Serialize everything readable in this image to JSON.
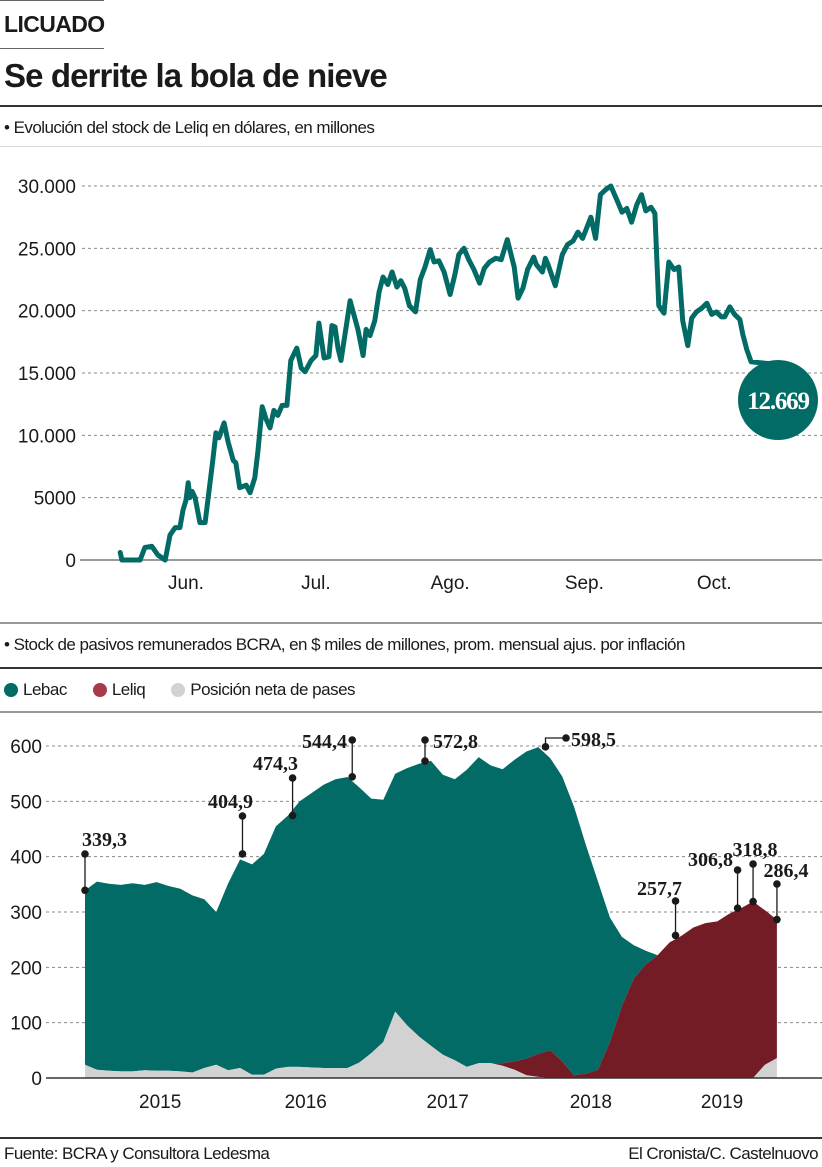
{
  "header": {
    "kicker": "LICUADO",
    "title": "Se derrite la bola de nieve"
  },
  "colors": {
    "teal": "#036b66",
    "maroon": "#731c26",
    "leliq_legend": "#a83a4a",
    "gray": "#d2d2d2",
    "grid": "#8a8a8a",
    "axis": "#9a9a9a",
    "annotation": "#1a1a1a"
  },
  "chart_data": [
    {
      "type": "line",
      "title": "• Evolución del stock de Leliq en dólares, en millones",
      "xlabel": "",
      "ylabel": "",
      "ylim": [
        0,
        30000
      ],
      "yticks": [
        0,
        5000,
        10000,
        15000,
        20000,
        25000,
        30000
      ],
      "ytick_labels": [
        "0",
        "5000",
        "10.000",
        "15.000",
        "20.000",
        "25.000",
        "30.000"
      ],
      "xticks": [
        0,
        30,
        61,
        92,
        122
      ],
      "xtick_labels": [
        "Jun.",
        "Jul.",
        "Ago.",
        "Sep.",
        "Oct."
      ],
      "x_unit": "days since 1 Jun",
      "grid": true,
      "series": [
        {
          "name": "Stock de Leliq (USD millones)",
          "x": [
            -15.2,
            -14.8,
            -10.6,
            -9.5,
            -7.9,
            -6.5,
            -4.8,
            -3.7,
            -2.5,
            -1.4,
            -0.7,
            0,
            0.5,
            0.9,
            1.4,
            2.1,
            3.2,
            4.4,
            6.2,
            6.9,
            7.6,
            8.8,
            9.7,
            10.9,
            11.5,
            12.4,
            13.9,
            14.8,
            15.9,
            16.6,
            17.6,
            18.5,
            19.4,
            20.3,
            21.2,
            22.2,
            23.3,
            24.2,
            25.6,
            26.6,
            27.5,
            28.9,
            30.0,
            30.7,
            31.9,
            33.0,
            33.7,
            34.4,
            35.1,
            35.8,
            37.2,
            37.9,
            38.6,
            39.7,
            40.9,
            41.6,
            42.5,
            43.6,
            44.6,
            45.5,
            46.6,
            47.6,
            48.7,
            49.6,
            50.5,
            51.6,
            53.0,
            54.1,
            55.2,
            56.4,
            57.3,
            58.4,
            59.6,
            61.0,
            62.1,
            63.0,
            64.2,
            65.3,
            66.5,
            67.8,
            68.9,
            70.1,
            71.5,
            72.8,
            74.2,
            75.8,
            76.7,
            77.8,
            78.9,
            80.3,
            80.9,
            82.3,
            83.0,
            83.6,
            85.3,
            86.9,
            88.1,
            89.4,
            90.5,
            91.6,
            93.5,
            94.6,
            95.7,
            96.9,
            98.1,
            99.5,
            100.7,
            101.8,
            102.9,
            104.1,
            105.2,
            106.2,
            107.4,
            108.3,
            109.2,
            110.4,
            111.5,
            112.7,
            113.8,
            114.7,
            115.9,
            116.8,
            117.9,
            119.1,
            120.3,
            121.4,
            122.5,
            123.7,
            124.4,
            125.6,
            126.7,
            127.9,
            128.6,
            129.5,
            130.5,
            135.2
          ],
          "values": [
            600,
            0,
            0,
            1000,
            1100,
            400,
            0,
            2000,
            2600,
            2600,
            4000,
            4800,
            6200,
            5000,
            5500,
            5000,
            3000,
            3000,
            8000,
            10200,
            9800,
            11000,
            9500,
            8000,
            7800,
            5800,
            6000,
            5400,
            6600,
            8700,
            12300,
            11300,
            10600,
            12000,
            11600,
            12400,
            12400,
            16000,
            17000,
            15400,
            15100,
            16000,
            16400,
            19000,
            16200,
            16300,
            18800,
            18700,
            17000,
            16000,
            19200,
            20800,
            19900,
            18500,
            16400,
            18500,
            18000,
            19200,
            21500,
            22700,
            22100,
            23100,
            21900,
            22400,
            21800,
            20400,
            19900,
            22500,
            23500,
            24900,
            23900,
            24000,
            23100,
            21300,
            22900,
            24500,
            25000,
            24100,
            23300,
            22200,
            23400,
            23900,
            24200,
            24100,
            25700,
            23500,
            21000,
            21800,
            23300,
            24300,
            23700,
            23100,
            24200,
            23700,
            22000,
            24500,
            25300,
            25600,
            26300,
            25800,
            27500,
            25800,
            29300,
            29700,
            30000,
            28900,
            27900,
            28200,
            27100,
            28500,
            29300,
            28000,
            28300,
            27800,
            20400,
            19800,
            23900,
            23300,
            23500,
            19200,
            17200,
            19400,
            19900,
            20200,
            20600,
            19700,
            19900,
            19500,
            19500,
            20300,
            19700,
            19300,
            18100,
            16900,
            15900,
            12669
          ]
        }
      ],
      "annotations": [
        {
          "label": "12.669",
          "value": 12669
        }
      ]
    },
    {
      "type": "area",
      "stacked": true,
      "title": "• Stock de pasivos remunerados BCRA, en $ miles de millones, prom. mensual ajus. por inflación",
      "xlabel": "",
      "ylabel": "",
      "ylim": [
        0,
        600
      ],
      "yticks": [
        0,
        100,
        200,
        300,
        400,
        500,
        600
      ],
      "ytick_labels": [
        "0",
        "100",
        "200",
        "300",
        "400",
        "500",
        "600"
      ],
      "xtick_labels": [
        "2015",
        "2016",
        "2017",
        "2018",
        "2019"
      ],
      "xticks_month_index": [
        6.3,
        18.5,
        30.4,
        42.4,
        53.4
      ],
      "x_unit": "months since Jul 2014",
      "grid": true,
      "legend": [
        "Lebac",
        "Leliq",
        "Posición neta de pases"
      ],
      "legend_placement": "top-left",
      "series": [
        {
          "name": "Posición neta de pases",
          "values": [
            24,
            15,
            13,
            12,
            12,
            14,
            13,
            13,
            12,
            10,
            18,
            24,
            14,
            18,
            6,
            6,
            17,
            20,
            20,
            19,
            18,
            18,
            18,
            28,
            45,
            65,
            120,
            95,
            75,
            58,
            42,
            32,
            20,
            27,
            27,
            22,
            15,
            5,
            2,
            0,
            0,
            0,
            0,
            0,
            0,
            0,
            0,
            0,
            0,
            0,
            0,
            0,
            0,
            0,
            0,
            0,
            0,
            24,
            36
          ]
        },
        {
          "name": "Leliq",
          "values": [
            0,
            0,
            0,
            0,
            0,
            0,
            0,
            0,
            0,
            0,
            0,
            0,
            0,
            0,
            0,
            0,
            0,
            0,
            0,
            0,
            0,
            0,
            0,
            0,
            0,
            0,
            0,
            0,
            0,
            0,
            0,
            0,
            0,
            0,
            0,
            5,
            15,
            30,
            42,
            50,
            30,
            5,
            8,
            15,
            65,
            130,
            180,
            205,
            222,
            245,
            257,
            272,
            280,
            283,
            297,
            307,
            319,
            279,
            250
          ]
        },
        {
          "name": "Lebac",
          "values": [
            315,
            340,
            338,
            337,
            340,
            335,
            341,
            334,
            330,
            320,
            305,
            276,
            338,
            377,
            380,
            399,
            438,
            454,
            480,
            496,
            512,
            522,
            526,
            497,
            460,
            438,
            430,
            465,
            493,
            515,
            506,
            508,
            537,
            553,
            538,
            531,
            545,
            555,
            554,
            528,
            515,
            485,
            412,
            340,
            225,
            125,
            60,
            25,
            0,
            0,
            0,
            0,
            0,
            0,
            0,
            0,
            0,
            0,
            0
          ]
        }
      ],
      "annotations": [
        {
          "label": "339,3",
          "month_index": 0,
          "value": 339.3
        },
        {
          "label": "404,9",
          "month_index": 13.2,
          "value": 404.9
        },
        {
          "label": "474,3",
          "month_index": 17.4,
          "value": 474.3
        },
        {
          "label": "544,4",
          "month_index": 22.4,
          "value": 544.4
        },
        {
          "label": "572,8",
          "month_index": 28.5,
          "value": 572.8
        },
        {
          "label": "598,5",
          "month_index": 38.6,
          "value": 598.5
        },
        {
          "label": "257,7",
          "month_index": 49.5,
          "value": 257.7
        },
        {
          "label": "306,8",
          "month_index": 54.7,
          "value": 306.8
        },
        {
          "label": "318,8",
          "month_index": 56.0,
          "value": 318.8
        },
        {
          "label": "286,4",
          "month_index": 58,
          "value": 286.4
        }
      ]
    }
  ],
  "footer": {
    "source": "Fuente: BCRA y Consultora Ledesma",
    "credit": "El Cronista/C. Castelnuovo"
  }
}
